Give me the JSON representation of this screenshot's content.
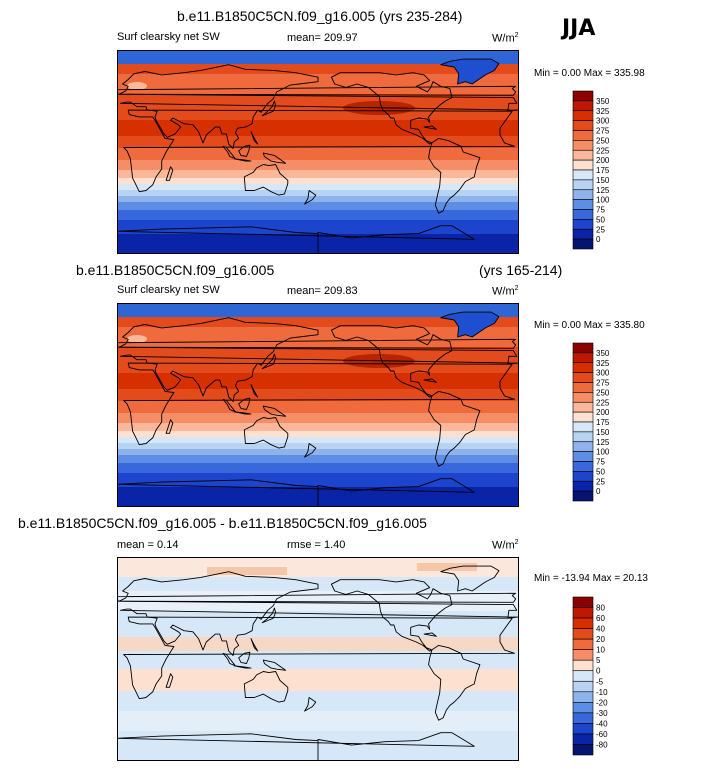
{
  "season": "JJA",
  "panels": [
    {
      "title": "b.e11.B1850C5CN.f09_g16.005 (yrs 235-284)",
      "variable": "Surf clearsky net SW",
      "mean_label": "mean= 209.97",
      "units": "W/m",
      "units_sup": "2",
      "minmax": "Min =   0.00 Max = 335.98"
    },
    {
      "title_left": "b.e11.B1850C5CN.f09_g16.005",
      "title_right": "(yrs 165-214)",
      "variable": "Surf clearsky net SW",
      "mean_label": "mean= 209.83",
      "units": "W/m",
      "units_sup": "2",
      "minmax": "Min =   0.00 Max = 335.80"
    },
    {
      "title": "b.e11.B1850C5CN.f09_g16.005 - b.e11.B1850C5CN.f09_g16.005",
      "mean_label": "mean =   0.14",
      "rmse_label": "rmse =   1.40",
      "units": "W/m",
      "units_sup": "2",
      "minmax": "Min = -13.94 Max =  20.13"
    }
  ],
  "chart_data": [
    {
      "type": "heatmap",
      "title": "b.e11.B1850C5CN.f09_g16.005 (yrs 235-284)",
      "subtitle": "Surf clearsky net SW",
      "mean": 209.97,
      "min": 0.0,
      "max": 335.98,
      "units": "W/m^2",
      "colorbar_levels": [
        "350",
        "325",
        "300",
        "275",
        "250",
        "225",
        "200",
        "175",
        "150",
        "125",
        "100",
        "75",
        "50",
        "25",
        "0"
      ],
      "colorbar_colors": [
        "#8b0000",
        "#c01800",
        "#d73000",
        "#e34a1c",
        "#ef6a3c",
        "#f58e66",
        "#fab79a",
        "#fde0d0",
        "#d6e8f8",
        "#b8d2f2",
        "#8db2ec",
        "#5e8ee4",
        "#3868dc",
        "#1c44cc",
        "#0a24a8",
        "#061470"
      ],
      "projection": "Cylindrical equidistant, Pacific-centered",
      "lat_range": [
        -90,
        90
      ],
      "lon_range": [
        0,
        360
      ]
    },
    {
      "type": "heatmap",
      "title": "b.e11.B1850C5CN.f09_g16.005 (yrs 165-214)",
      "subtitle": "Surf clearsky net SW",
      "mean": 209.83,
      "min": 0.0,
      "max": 335.8,
      "units": "W/m^2",
      "colorbar_levels": [
        "350",
        "325",
        "300",
        "275",
        "250",
        "225",
        "200",
        "175",
        "150",
        "125",
        "100",
        "75",
        "50",
        "25",
        "0"
      ],
      "colorbar_colors": [
        "#8b0000",
        "#c01800",
        "#d73000",
        "#e34a1c",
        "#ef6a3c",
        "#f58e66",
        "#fab79a",
        "#fde0d0",
        "#d6e8f8",
        "#b8d2f2",
        "#8db2ec",
        "#5e8ee4",
        "#3868dc",
        "#1c44cc",
        "#0a24a8",
        "#061470"
      ],
      "projection": "Cylindrical equidistant, Pacific-centered",
      "lat_range": [
        -90,
        90
      ],
      "lon_range": [
        0,
        360
      ]
    },
    {
      "type": "heatmap",
      "title": "b.e11.B1850C5CN.f09_g16.005 - b.e11.B1850C5CN.f09_g16.005",
      "mean": 0.14,
      "rmse": 1.4,
      "min": -13.94,
      "max": 20.13,
      "units": "W/m^2",
      "colorbar_levels": [
        "80",
        "60",
        "40",
        "20",
        "10",
        "5",
        "0",
        "-5",
        "-10",
        "-20",
        "-30",
        "-40",
        "-60",
        "-80"
      ],
      "colorbar_colors": [
        "#8b0000",
        "#c01800",
        "#d73000",
        "#e34a1c",
        "#ef6a3c",
        "#f58e66",
        "#fde0d0",
        "#d6e8f8",
        "#b8d2f2",
        "#8db2ec",
        "#5e8ee4",
        "#3868dc",
        "#1c44cc",
        "#0a24a8",
        "#061470"
      ],
      "projection": "Cylindrical equidistant, Pacific-centered",
      "lat_range": [
        -90,
        90
      ],
      "lon_range": [
        0,
        360
      ]
    }
  ]
}
